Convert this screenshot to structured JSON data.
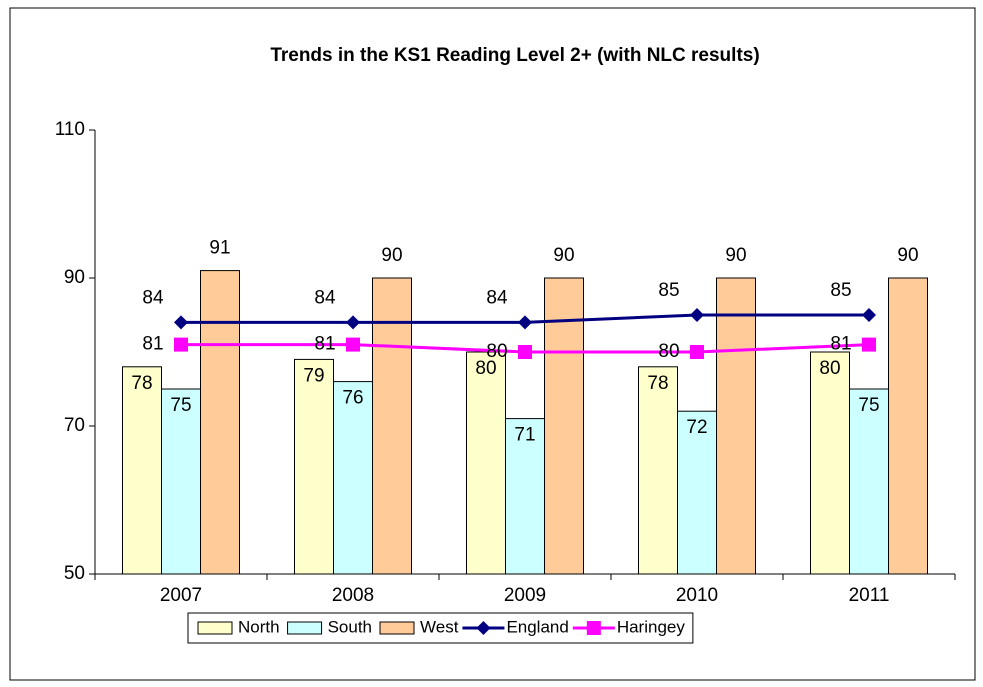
{
  "chart_data": {
    "type": "bar",
    "title": "Trends in the KS1 Reading Level 2+ (with NLC results)",
    "categories": [
      "2007",
      "2008",
      "2009",
      "2010",
      "2011"
    ],
    "series": [
      {
        "name": "North",
        "type": "bar",
        "color": "#ffffcc",
        "values": [
          78,
          79,
          80,
          78,
          80
        ]
      },
      {
        "name": "South",
        "type": "bar",
        "color": "#ccffff",
        "values": [
          75,
          76,
          71,
          72,
          75
        ]
      },
      {
        "name": "West",
        "type": "bar",
        "color": "#ffcc99",
        "values": [
          91,
          90,
          90,
          90,
          90
        ]
      },
      {
        "name": "England",
        "type": "line",
        "marker": "diamond",
        "color": "#000080",
        "values": [
          84,
          84,
          84,
          85,
          85
        ]
      },
      {
        "name": "Haringey",
        "type": "line",
        "marker": "square",
        "color": "#ff00ff",
        "values": [
          81,
          81,
          80,
          80,
          81
        ]
      }
    ],
    "ylim": [
      50,
      110
    ],
    "yticks": [
      50,
      70,
      90,
      110
    ],
    "grid": false,
    "legend": "bottom"
  }
}
